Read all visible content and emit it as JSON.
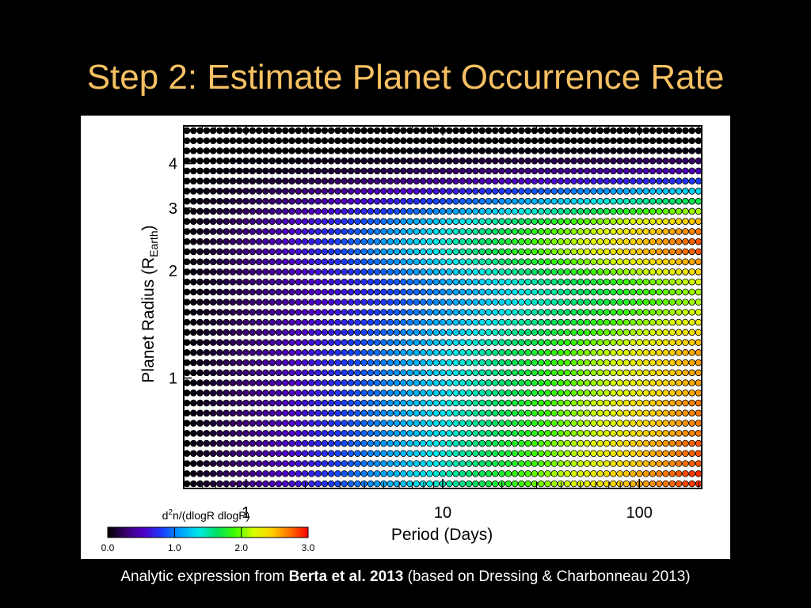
{
  "slide": {
    "title": "Step 2: Estimate Planet Occurrence Rate",
    "title_color": "#f6c063",
    "background": "#000000"
  },
  "caption": {
    "prefix": "Analytic expression from ",
    "bold": "Berta et al. 2013",
    "suffix": " (based on Dressing & Charbonneau 2013)"
  },
  "chart_data": {
    "type": "heatmap",
    "marker": "filled circles on a regular grid",
    "xlabel": "Period (Days)",
    "ylabel_main": "Planet Radius (R",
    "ylabel_sub": "Earth",
    "ylabel_close": ")",
    "x_scale": "log",
    "y_scale": "log",
    "xlim": [
      0.5,
      200
    ],
    "ylim": [
      0.5,
      5.0
    ],
    "x_ticks": [
      {
        "value": 1,
        "label": "1"
      },
      {
        "value": 10,
        "label": "10"
      },
      {
        "value": 100,
        "label": "100"
      }
    ],
    "y_ticks": [
      {
        "value": 1,
        "label": "1"
      },
      {
        "value": 2,
        "label": "2"
      },
      {
        "value": 3,
        "label": "3"
      },
      {
        "value": 4,
        "label": "4"
      }
    ],
    "grid_columns": 79,
    "grid_rows": 36,
    "rows": [
      {
        "radius": 4.8,
        "max_value": 0.0
      },
      {
        "radius": 4.52,
        "max_value": 0.0
      },
      {
        "radius": 4.25,
        "max_value": 0.05
      },
      {
        "radius": 4.0,
        "max_value": 0.25
      },
      {
        "radius": 3.76,
        "max_value": 0.5
      },
      {
        "radius": 3.54,
        "max_value": 0.8
      },
      {
        "radius": 3.33,
        "max_value": 1.3
      },
      {
        "radius": 3.13,
        "max_value": 1.7
      },
      {
        "radius": 2.95,
        "max_value": 2.1
      },
      {
        "radius": 2.77,
        "max_value": 2.5
      },
      {
        "radius": 2.61,
        "max_value": 2.7
      },
      {
        "radius": 2.45,
        "max_value": 2.8
      },
      {
        "radius": 2.31,
        "max_value": 2.8
      },
      {
        "radius": 2.17,
        "max_value": 2.6
      },
      {
        "radius": 2.04,
        "max_value": 2.4
      },
      {
        "radius": 1.92,
        "max_value": 2.2
      },
      {
        "radius": 1.81,
        "max_value": 2.1
      },
      {
        "radius": 1.7,
        "max_value": 2.1
      },
      {
        "radius": 1.6,
        "max_value": 2.2
      },
      {
        "radius": 1.51,
        "max_value": 2.3
      },
      {
        "radius": 1.42,
        "max_value": 2.4
      },
      {
        "radius": 1.33,
        "max_value": 2.5
      },
      {
        "radius": 1.25,
        "max_value": 2.6
      },
      {
        "radius": 1.18,
        "max_value": 2.6
      },
      {
        "radius": 1.11,
        "max_value": 2.6
      },
      {
        "radius": 1.04,
        "max_value": 2.6
      },
      {
        "radius": 0.98,
        "max_value": 2.6
      },
      {
        "radius": 0.92,
        "max_value": 2.7
      },
      {
        "radius": 0.87,
        "max_value": 2.7
      },
      {
        "radius": 0.82,
        "max_value": 2.7
      },
      {
        "radius": 0.77,
        "max_value": 2.7
      },
      {
        "radius": 0.72,
        "max_value": 2.8
      },
      {
        "radius": 0.68,
        "max_value": 2.8
      },
      {
        "radius": 0.64,
        "max_value": 2.8
      },
      {
        "radius": 0.6,
        "max_value": 2.9
      },
      {
        "radius": 0.57,
        "max_value": 2.9
      }
    ],
    "value_shape": "each row rises from 0.0 at the shortest period to its max_value at the longest period, roughly linear in log period",
    "colorbar": {
      "title_pre": "d",
      "title_sup": "2",
      "title_post": "n/(dlogR dlogP)",
      "range": [
        0.0,
        3.0
      ],
      "ticks": [
        {
          "value": 0.0,
          "label": "0.0"
        },
        {
          "value": 1.0,
          "label": "1.0"
        },
        {
          "value": 2.0,
          "label": "2.0"
        },
        {
          "value": 3.0,
          "label": "3.0"
        }
      ],
      "colormap": [
        "#000000",
        "#3a0070",
        "#5000c8",
        "#1a3cff",
        "#00a0ff",
        "#00e8e8",
        "#00e060",
        "#40ff00",
        "#d8ff00",
        "#ffd000",
        "#ff7000",
        "#ff0000"
      ]
    }
  }
}
